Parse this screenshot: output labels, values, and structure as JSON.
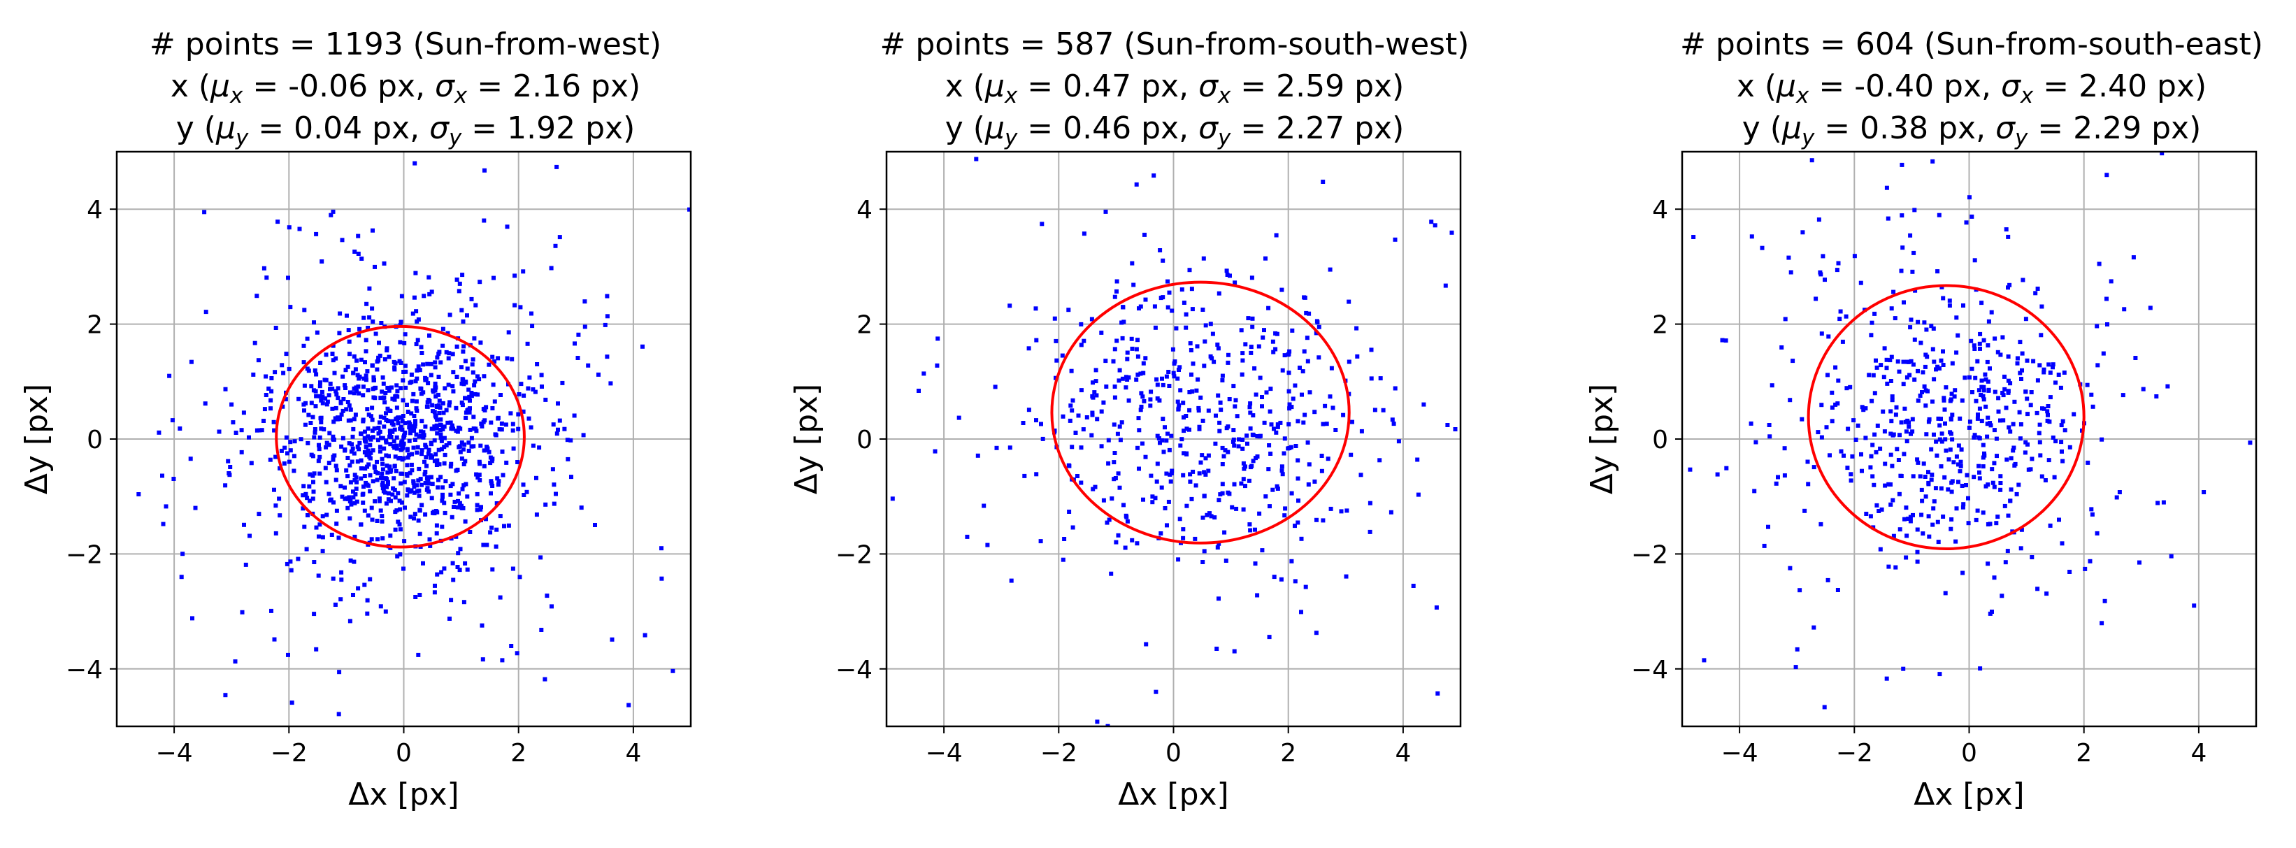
{
  "chart_data": [
    {
      "type": "scatter",
      "title_lines": [
        {
          "parts": [
            {
              "t": "# points = 1193 (Sun-from-west)"
            }
          ]
        },
        {
          "parts": [
            {
              "t": "x ("
            },
            {
              "t": "μ",
              "sub": "x"
            },
            {
              "t": " = -0.06 px, "
            },
            {
              "t": "σ",
              "sub": "x"
            },
            {
              "t": " = 2.16 px)"
            }
          ]
        },
        {
          "parts": [
            {
              "t": "y ("
            },
            {
              "t": "μ",
              "sub": "y"
            },
            {
              "t": " = 0.04 px, "
            },
            {
              "t": "σ",
              "sub": "y"
            },
            {
              "t": " = 1.92 px)"
            }
          ]
        }
      ],
      "xlabel": "Δx [px]",
      "ylabel": "Δy [px]",
      "xlim": [
        -5,
        5
      ],
      "ylim": [
        -5,
        5
      ],
      "xticks": [
        -4,
        -2,
        0,
        2,
        4
      ],
      "yticks": [
        -4,
        -2,
        0,
        2,
        4
      ],
      "xtick_labels": [
        "−4",
        "−2",
        "0",
        "2",
        "4"
      ],
      "ytick_labels": [
        "−4",
        "−2",
        "0",
        "2",
        "4"
      ],
      "grid": true,
      "ellipse": {
        "cx": -0.06,
        "cy": 0.04,
        "rx": 2.16,
        "ry": 1.92
      },
      "points": {
        "count": 1193,
        "mean": [
          -0.06,
          0.04
        ],
        "std": [
          2.16,
          1.92
        ]
      }
    },
    {
      "type": "scatter",
      "title_lines": [
        {
          "parts": [
            {
              "t": "# points = 587 (Sun-from-south-west)"
            }
          ]
        },
        {
          "parts": [
            {
              "t": "x ("
            },
            {
              "t": "μ",
              "sub": "x"
            },
            {
              "t": " = 0.47 px, "
            },
            {
              "t": "σ",
              "sub": "x"
            },
            {
              "t": " = 2.59 px)"
            }
          ]
        },
        {
          "parts": [
            {
              "t": "y ("
            },
            {
              "t": "μ",
              "sub": "y"
            },
            {
              "t": " = 0.46 px, "
            },
            {
              "t": "σ",
              "sub": "y"
            },
            {
              "t": " = 2.27 px)"
            }
          ]
        }
      ],
      "xlabel": "Δx [px]",
      "ylabel": "Δy [px]",
      "xlim": [
        -5,
        5
      ],
      "ylim": [
        -5,
        5
      ],
      "xticks": [
        -4,
        -2,
        0,
        2,
        4
      ],
      "yticks": [
        -4,
        -2,
        0,
        2,
        4
      ],
      "xtick_labels": [
        "−4",
        "−2",
        "0",
        "2",
        "4"
      ],
      "ytick_labels": [
        "−4",
        "−2",
        "0",
        "2",
        "4"
      ],
      "grid": true,
      "ellipse": {
        "cx": 0.47,
        "cy": 0.46,
        "rx": 2.59,
        "ry": 2.27
      },
      "points": {
        "count": 587,
        "mean": [
          0.47,
          0.46
        ],
        "std": [
          2.59,
          2.27
        ]
      }
    },
    {
      "type": "scatter",
      "title_lines": [
        {
          "parts": [
            {
              "t": "# points = 604 (Sun-from-south-east)"
            }
          ]
        },
        {
          "parts": [
            {
              "t": "x ("
            },
            {
              "t": "μ",
              "sub": "x"
            },
            {
              "t": " = -0.40 px, "
            },
            {
              "t": "σ",
              "sub": "x"
            },
            {
              "t": " = 2.40 px)"
            }
          ]
        },
        {
          "parts": [
            {
              "t": "y ("
            },
            {
              "t": "μ",
              "sub": "y"
            },
            {
              "t": " = 0.38 px, "
            },
            {
              "t": "σ",
              "sub": "y"
            },
            {
              "t": " = 2.29 px)"
            }
          ]
        }
      ],
      "xlabel": "Δx [px]",
      "ylabel": "Δy [px]",
      "xlim": [
        -5,
        5
      ],
      "ylim": [
        -5,
        5
      ],
      "xticks": [
        -4,
        -2,
        0,
        2,
        4
      ],
      "yticks": [
        -4,
        -2,
        0,
        2,
        4
      ],
      "xtick_labels": [
        "−4",
        "−2",
        "0",
        "2",
        "4"
      ],
      "ytick_labels": [
        "−4",
        "−2",
        "0",
        "2",
        "4"
      ],
      "grid": true,
      "ellipse": {
        "cx": -0.4,
        "cy": 0.38,
        "rx": 2.4,
        "ry": 2.29
      },
      "points": {
        "count": 604,
        "mean": [
          -0.4,
          0.38
        ],
        "std": [
          2.4,
          2.29
        ]
      }
    }
  ],
  "colors": {
    "points": "#0000ff",
    "ellipse": "#ff0000",
    "grid": "#b0b0b0",
    "axes": "#000000"
  }
}
